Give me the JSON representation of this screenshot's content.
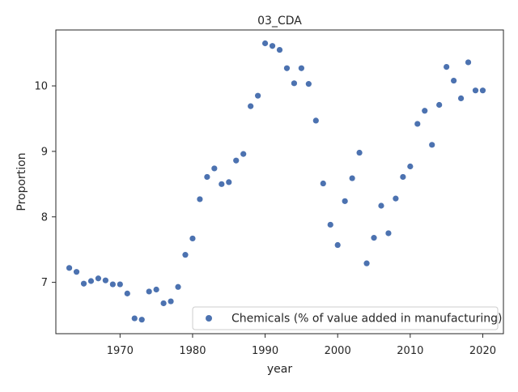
{
  "chart_data": {
    "type": "scatter",
    "title": "03_CDA",
    "xlabel": "year",
    "ylabel": "Proportion",
    "xlim": [
      1961.15,
      2022.85
    ],
    "ylim": [
      6.216,
      10.854
    ],
    "x_ticks": [
      1970,
      1980,
      1990,
      2000,
      2010,
      2020
    ],
    "y_ticks": [
      7,
      8,
      9,
      10
    ],
    "grid": false,
    "legend_position": "lower right",
    "series": [
      {
        "name": "Chemicals (% of value added in manufacturing)",
        "color": "#4c72b0",
        "points": [
          [
            1963,
            7.22
          ],
          [
            1964,
            7.16
          ],
          [
            1965,
            6.98
          ],
          [
            1966,
            7.02
          ],
          [
            1967,
            7.06
          ],
          [
            1968,
            7.03
          ],
          [
            1969,
            6.97
          ],
          [
            1970,
            6.97
          ],
          [
            1971,
            6.83
          ],
          [
            1972,
            6.45
          ],
          [
            1973,
            6.43
          ],
          [
            1974,
            6.86
          ],
          [
            1975,
            6.89
          ],
          [
            1976,
            6.68
          ],
          [
            1977,
            6.71
          ],
          [
            1978,
            6.93
          ],
          [
            1979,
            7.42
          ],
          [
            1980,
            7.67
          ],
          [
            1981,
            8.27
          ],
          [
            1982,
            8.61
          ],
          [
            1983,
            8.74
          ],
          [
            1984,
            8.5
          ],
          [
            1985,
            8.53
          ],
          [
            1986,
            8.86
          ],
          [
            1987,
            8.96
          ],
          [
            1988,
            9.69
          ],
          [
            1989,
            9.85
          ],
          [
            1990,
            10.65
          ],
          [
            1991,
            10.61
          ],
          [
            1992,
            10.55
          ],
          [
            1993,
            10.27
          ],
          [
            1994,
            10.04
          ],
          [
            1995,
            10.27
          ],
          [
            1996,
            10.03
          ],
          [
            1997,
            9.47
          ],
          [
            1998,
            8.51
          ],
          [
            1999,
            7.88
          ],
          [
            2000,
            7.57
          ],
          [
            2001,
            8.24
          ],
          [
            2002,
            8.59
          ],
          [
            2003,
            8.98
          ],
          [
            2004,
            7.29
          ],
          [
            2005,
            7.68
          ],
          [
            2006,
            8.17
          ],
          [
            2007,
            7.75
          ],
          [
            2008,
            8.28
          ],
          [
            2009,
            8.61
          ],
          [
            2010,
            8.77
          ],
          [
            2011,
            9.42
          ],
          [
            2012,
            9.62
          ],
          [
            2013,
            9.1
          ],
          [
            2014,
            9.71
          ],
          [
            2015,
            10.29
          ],
          [
            2016,
            10.08
          ],
          [
            2017,
            9.81
          ],
          [
            2018,
            10.36
          ],
          [
            2019,
            9.93
          ],
          [
            2020,
            9.93
          ]
        ]
      }
    ]
  }
}
